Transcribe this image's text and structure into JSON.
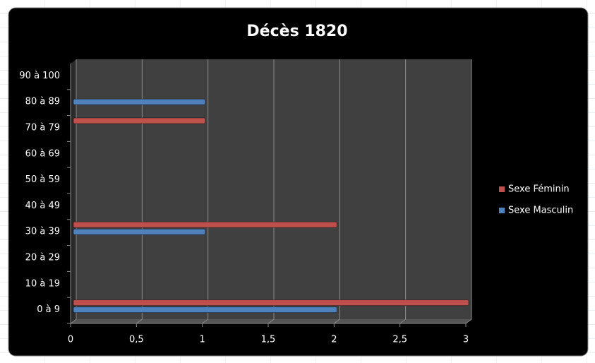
{
  "chart_data": {
    "type": "bar",
    "orientation": "horizontal",
    "title": "Décès 1820",
    "categories": [
      "0 à 9",
      "10 à 19",
      "20 à 29",
      "30 à 39",
      "40 à 49",
      "50 à 59",
      "60 à 69",
      "70 à 79",
      "80 à 89",
      "90 à 100"
    ],
    "series": [
      {
        "name": "Sexe Féminin",
        "color": "#c0504d",
        "values": [
          3,
          0,
          0,
          2,
          0,
          0,
          0,
          1,
          0,
          0
        ]
      },
      {
        "name": "Sexe Masculin",
        "color": "#4f81bd",
        "values": [
          2,
          0,
          0,
          1,
          0,
          0,
          0,
          0,
          1,
          0
        ]
      }
    ],
    "xlim": [
      0,
      3
    ],
    "xticks": [
      0,
      {
        "value": 0.5,
        "label": "0,5"
      },
      1,
      {
        "value": 1.5,
        "label": "1,5"
      },
      2,
      {
        "value": 2.5,
        "label": "2,5"
      },
      3
    ],
    "grid": true,
    "legend": "right"
  }
}
